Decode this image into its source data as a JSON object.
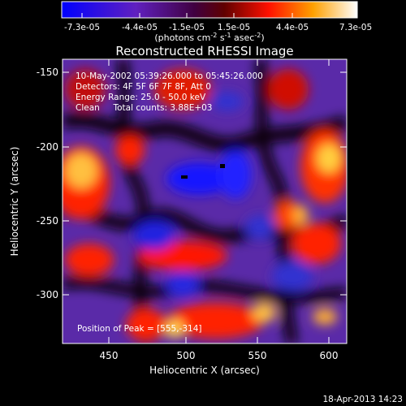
{
  "colorbar": {
    "tick_labels": [
      "-7.3e-05",
      "-4.4e-05",
      "-1.5e-05",
      "1.5e-05",
      "4.4e-05",
      "7.3e-05"
    ],
    "units_prefix": "(photons cm",
    "units_exp1": "-2",
    "units_mid": " s",
    "units_exp2": "-1",
    "units_mid2": " asec",
    "units_exp3": "-2",
    "units_suffix": ")"
  },
  "image": {
    "title": "Reconstructed RHESSI Image",
    "info_lines": [
      "10-May-2002 05:39:26.000 to 05:45:26.000",
      "Detectors: 4F 5F 6F 7F 8F, Att 0",
      "Energy Range: 25.0 - 50.0 keV",
      "Clean     Total counts: 3.88E+03"
    ],
    "peak_label": "Position of Peak = [555,-314]",
    "xlabel": "Heliocentric X (arcsec)",
    "ylabel": "Heliocentric Y (arcsec)",
    "xticks": [
      "450",
      "500",
      "550",
      "600"
    ],
    "yticks": [
      "-150",
      "-200",
      "-250",
      "-300"
    ],
    "colors": {
      "cold": "#1010ff",
      "mid": "#000000",
      "warm": "#ff2000",
      "hot": "#ffffa0"
    }
  },
  "footer": {
    "timestamp": "18-Apr-2013 14:23"
  }
}
